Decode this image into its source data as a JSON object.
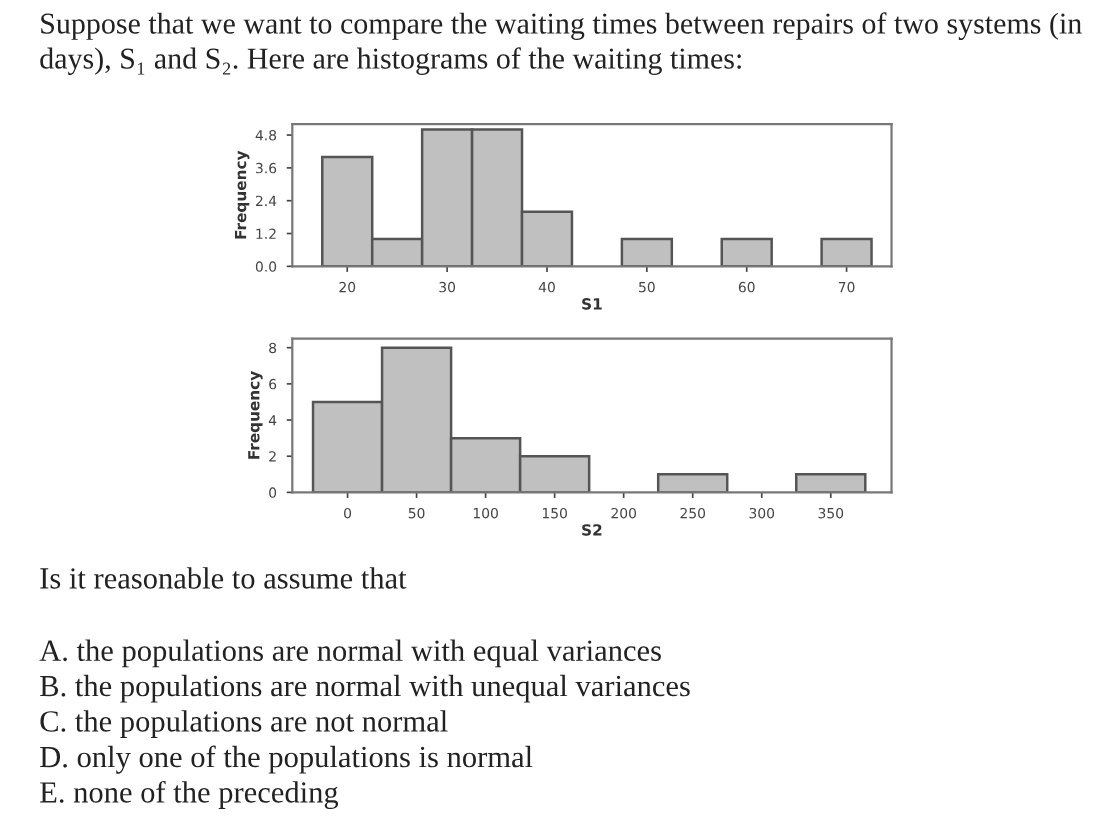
{
  "chart_data": [
    {
      "type": "histogram",
      "title": "Suppose that we want to compare the waiting times between repairs of two systems (in days), S₁ and S₂. Here are histograms of the waiting times:",
      "xlabel": "S1",
      "ylabel": "Frequency",
      "color": "#c0c0c0",
      "bins": [
        17.5,
        22.5,
        27.5,
        32.5,
        37.5,
        42.5,
        47.5,
        52.5,
        57.5,
        62.5,
        67.5,
        72.5
      ],
      "values": [
        4,
        1,
        5,
        5,
        2,
        0,
        1,
        0,
        1,
        0,
        1
      ],
      "xlim": [
        14.5,
        74.5
      ],
      "xticks": [
        20,
        30,
        40,
        50,
        60,
        70
      ],
      "ylim": [
        0,
        5.2
      ],
      "yticks": [
        {
          "value": 0,
          "label": "0.0"
        },
        {
          "value": 1.2,
          "label": "1.2"
        },
        {
          "value": 2.4,
          "label": "2.4"
        },
        {
          "value": 3.6,
          "label": "3.6"
        },
        {
          "value": 4.8,
          "label": "4.8"
        }
      ],
      "grid": false
    },
    {
      "type": "histogram",
      "xlabel": "S2",
      "ylabel": "Frequency",
      "color": "#c0c0c0",
      "bins": [
        -25,
        25,
        75,
        125,
        175,
        225,
        275,
        325,
        375
      ],
      "values": [
        5,
        8,
        3,
        2,
        0,
        1,
        0,
        1
      ],
      "xlim": [
        -40,
        394
      ],
      "xticks": [
        0,
        50,
        100,
        150,
        200,
        250,
        300,
        350
      ],
      "ylim": [
        0,
        8.5
      ],
      "yticks": [
        0,
        2,
        4,
        6,
        8
      ],
      "grid": false,
      "annotations": [
        "Is it reasonable to assume that",
        "A. the populations are normal with equal variances",
        "B. the populations are normal with unequal variances",
        "C. the populations are not normal",
        "D. only one of the populations is normal",
        "E. none of the preceding"
      ]
    }
  ]
}
